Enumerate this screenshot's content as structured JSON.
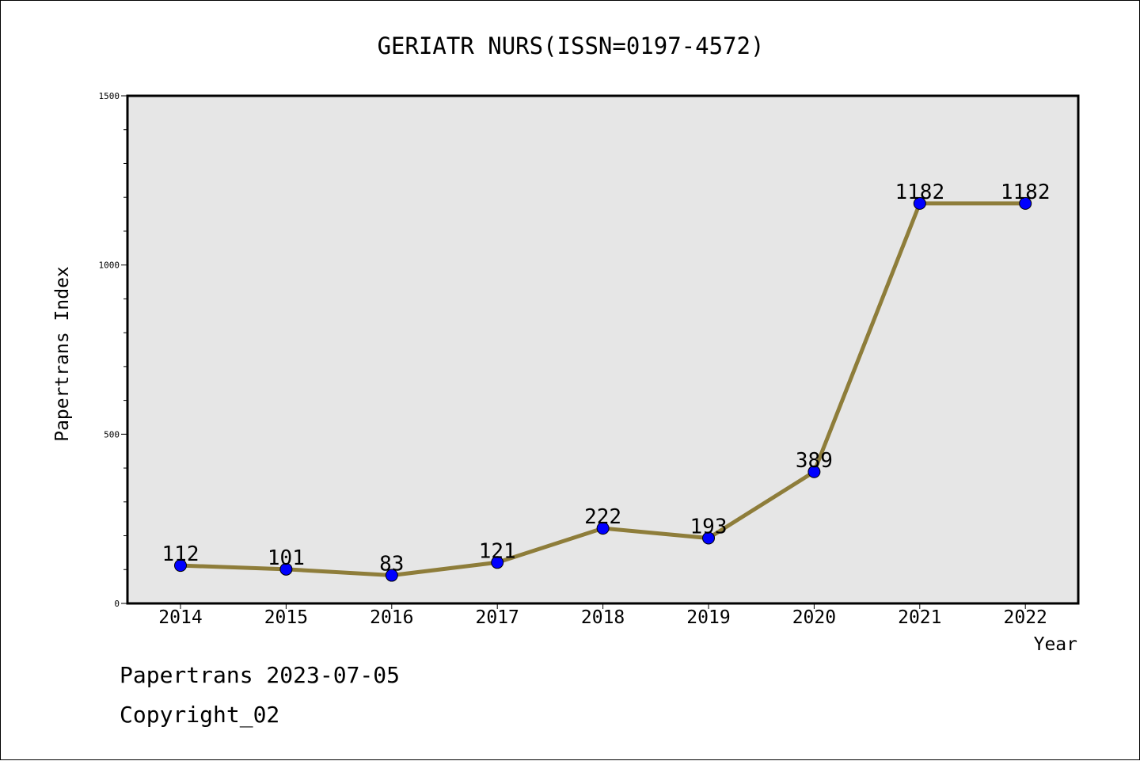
{
  "chart_data": {
    "type": "line",
    "title": "GERIATR NURS(ISSN=0197-4572)",
    "xlabel": "Year",
    "ylabel": "Papertrans Index",
    "categories": [
      "2014",
      "2015",
      "2016",
      "2017",
      "2018",
      "2019",
      "2020",
      "2021",
      "2022"
    ],
    "series": [
      {
        "values": [
          112,
          101,
          83,
          121,
          222,
          193,
          389,
          1182,
          1182
        ]
      }
    ],
    "data_labels": [
      "112",
      "101",
      "83",
      "121",
      "222",
      "193",
      "389",
      "1182",
      "1182"
    ],
    "ylim": [
      0,
      1500
    ],
    "y_tick_labels": [
      "0",
      "500",
      "1000",
      "1500"
    ],
    "grid": false,
    "colors": {
      "line": "#8e7d3a",
      "marker": "#0000ff",
      "plot_background": "#e6e6e6"
    }
  },
  "footer": {
    "source": "Papertrans 2023-07-05",
    "copyright": "Copyright_02"
  }
}
